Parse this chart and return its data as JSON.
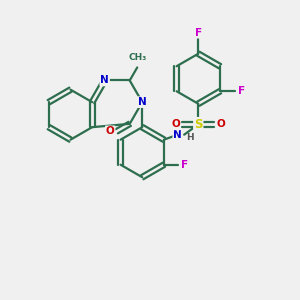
{
  "bg_color": "#f0f0f0",
  "bond_color": "#2d6e4e",
  "N_color": "#0000cc",
  "O_color": "#cc0000",
  "F_color": "#cc00cc",
  "S_color": "#cccc00",
  "line_width": 1.6,
  "figsize": [
    3.0,
    3.0
  ],
  "dpi": 100,
  "xlim": [
    0,
    10
  ],
  "ylim": [
    0,
    10
  ]
}
